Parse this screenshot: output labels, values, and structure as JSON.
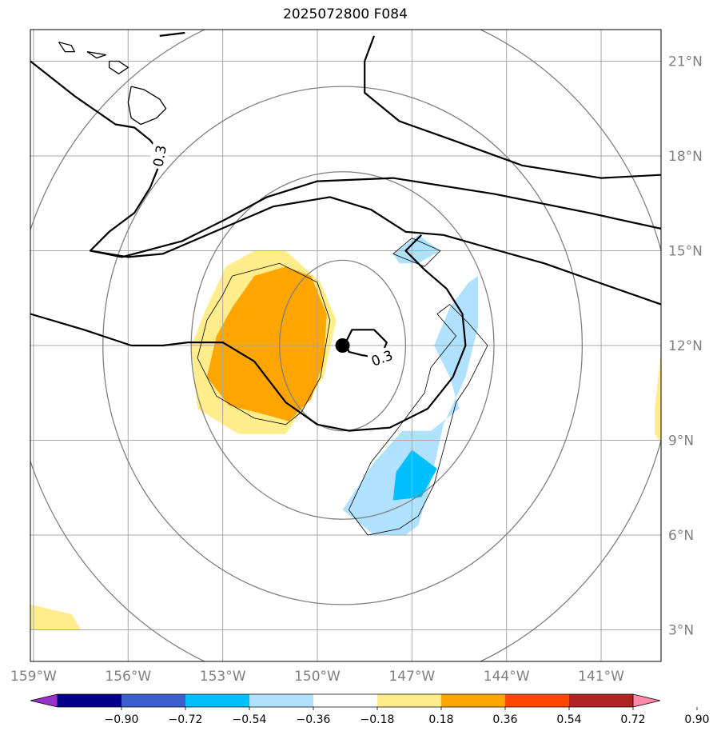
{
  "title": "2025072800 F084",
  "chart_data": {
    "type": "filled-contour-map",
    "title": "2025072800 F084",
    "x_ticks": [
      {
        "value": -159,
        "label": "159°W"
      },
      {
        "value": -156,
        "label": "156°W"
      },
      {
        "value": -153,
        "label": "153°W"
      },
      {
        "value": -150,
        "label": "150°W"
      },
      {
        "value": -147,
        "label": "147°W"
      },
      {
        "value": -144,
        "label": "144°W"
      },
      {
        "value": -141,
        "label": "141°W"
      }
    ],
    "y_ticks": [
      {
        "value": 3,
        "label": "3°N"
      },
      {
        "value": 6,
        "label": "6°N"
      },
      {
        "value": 9,
        "label": "9°N"
      },
      {
        "value": 12,
        "label": "12°N"
      },
      {
        "value": 15,
        "label": "15°N"
      },
      {
        "value": 18,
        "label": "18°N"
      },
      {
        "value": 21,
        "label": "21°N"
      }
    ],
    "xlim": [
      -159.1,
      -139.1
    ],
    "ylim": [
      2.0,
      22.0
    ],
    "grid": true,
    "center": {
      "lon": -149.2,
      "lat": 12.0
    },
    "range_rings": [
      {
        "dlon": 2.0,
        "dlat": 2.7
      },
      {
        "dlon": 4.8,
        "dlat": 5.5
      },
      {
        "dlon": 7.6,
        "dlat": 8.2
      },
      {
        "dlon": 10.5,
        "dlat": 11.0
      }
    ],
    "colorbar": {
      "levels": [
        "−0.90",
        "−0.72",
        "−0.54",
        "−0.36",
        "−0.18",
        "0.18",
        "0.36",
        "0.54",
        "0.72",
        "0.90"
      ],
      "colors": [
        "#9932CC",
        "#00008B",
        "#3A5FCD",
        "#00BFFF",
        "#B0E2FF",
        "#FFFFFF",
        "#FFEC8B",
        "#FFA500",
        "#FF4500",
        "#B22222",
        "#FF88AA"
      ],
      "extend": "both"
    },
    "contour_labels": [
      {
        "text": "0.3",
        "lon": -155.0,
        "lat": 18.0,
        "rotation": -80
      },
      {
        "text": "0.3",
        "lon": -147.95,
        "lat": 11.6,
        "rotation": -20
      }
    ],
    "filled_regions": [
      {
        "color": "#FFEC8B",
        "points": [
          [
            -152.9,
            14.5
          ],
          [
            -152.0,
            15.0
          ],
          [
            -151.0,
            15.0
          ],
          [
            -149.9,
            14.0
          ],
          [
            -149.4,
            12.8
          ],
          [
            -149.8,
            11.0
          ],
          [
            -150.6,
            9.8
          ],
          [
            -151.0,
            9.2
          ],
          [
            -152.5,
            9.2
          ],
          [
            -153.8,
            10.0
          ],
          [
            -154.0,
            12.0
          ],
          [
            -153.6,
            13.0
          ]
        ]
      },
      {
        "color": "#FFA500",
        "points": [
          [
            -152.0,
            14.2
          ],
          [
            -151.0,
            14.5
          ],
          [
            -150.2,
            14.2
          ],
          [
            -149.7,
            13.0
          ],
          [
            -149.8,
            11.5
          ],
          [
            -150.2,
            10.3
          ],
          [
            -150.9,
            9.6
          ],
          [
            -151.6,
            9.8
          ],
          [
            -152.8,
            10.1
          ],
          [
            -153.5,
            11.0
          ],
          [
            -153.2,
            12.3
          ],
          [
            -152.7,
            13.2
          ]
        ]
      },
      {
        "color": "#B0E2FF",
        "points": [
          [
            -146.4,
            9.3
          ],
          [
            -145.5,
            10.0
          ],
          [
            -145.8,
            11.0
          ],
          [
            -146.3,
            12.0
          ],
          [
            -145.8,
            13.2
          ],
          [
            -145.2,
            14.0
          ],
          [
            -144.9,
            14.2
          ],
          [
            -144.9,
            12.6
          ],
          [
            -145.3,
            11.0
          ],
          [
            -146.0,
            9.5
          ],
          [
            -146.5,
            7.3
          ],
          [
            -146.8,
            6.3
          ],
          [
            -147.2,
            6.0
          ],
          [
            -148.2,
            6.0
          ],
          [
            -149.2,
            6.8
          ],
          [
            -148.2,
            8.3
          ],
          [
            -147.3,
            9.3
          ]
        ]
      },
      {
        "color": "#B0E2FF",
        "points": [
          [
            -147.6,
            14.9
          ],
          [
            -146.8,
            15.5
          ],
          [
            -146.1,
            15.0
          ],
          [
            -146.8,
            14.6
          ],
          [
            -147.4,
            14.6
          ]
        ]
      },
      {
        "color": "#00BFFF",
        "points": [
          [
            -147.0,
            8.7
          ],
          [
            -146.2,
            8.1
          ],
          [
            -146.7,
            7.2
          ],
          [
            -147.6,
            7.1
          ],
          [
            -147.5,
            8.0
          ]
        ]
      },
      {
        "color": "#FFEC8B",
        "points": [
          [
            -139.1,
            11.8
          ],
          [
            -139.3,
            10.0
          ],
          [
            -139.3,
            9.2
          ],
          [
            -139.1,
            8.9
          ]
        ]
      },
      {
        "color": "#FFEC8B",
        "points": [
          [
            -159.1,
            3.0
          ],
          [
            -157.5,
            3.0
          ],
          [
            -157.8,
            3.5
          ],
          [
            -159.1,
            3.8
          ]
        ]
      }
    ]
  }
}
